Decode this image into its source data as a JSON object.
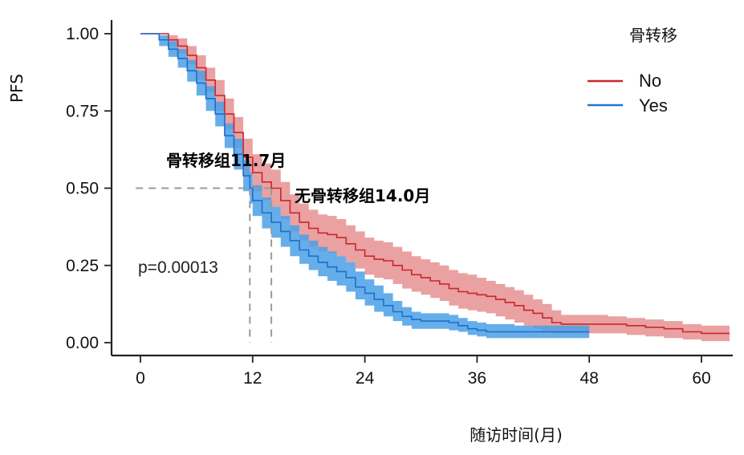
{
  "chart_data": {
    "type": "line",
    "subtype": "kaplan-meier",
    "ylabel": "PFS",
    "xlabel": "随访时间(月)",
    "xlim": [
      0,
      63
    ],
    "ylim": [
      0,
      1.0
    ],
    "x_ticks": [
      0,
      12,
      24,
      36,
      48,
      60
    ],
    "y_ticks": [
      0.0,
      0.25,
      0.5,
      0.75,
      1.0
    ],
    "y_tick_labels": [
      "0.00",
      "0.25",
      "0.50",
      "0.75",
      "1.00"
    ],
    "legend": {
      "title": "骨转移",
      "position": "top-right",
      "entries": [
        {
          "label": "No",
          "color": "#c8272d"
        },
        {
          "label": "Yes",
          "color": "#1f77d4"
        }
      ]
    },
    "annotations": {
      "median_bone_metastasis": "骨转移组11.7月",
      "median_no_bone_metastasis": "无骨转移组14.0月",
      "p_value": "p=0.00013"
    },
    "median_survival": {
      "No": 14.0,
      "Yes": 11.7
    },
    "series": [
      {
        "name": "No",
        "color": "#c8272d",
        "ci_color": "#e58a8a",
        "points": [
          [
            0,
            1.0
          ],
          [
            1.5,
            1.0
          ],
          [
            3,
            0.98
          ],
          [
            4,
            0.96
          ],
          [
            5,
            0.93
          ],
          [
            6,
            0.89
          ],
          [
            7,
            0.85
          ],
          [
            8,
            0.8
          ],
          [
            9,
            0.74
          ],
          [
            10,
            0.68
          ],
          [
            11,
            0.6
          ],
          [
            12,
            0.55
          ],
          [
            13,
            0.52
          ],
          [
            14,
            0.5
          ],
          [
            15,
            0.46
          ],
          [
            16,
            0.42
          ],
          [
            17,
            0.39
          ],
          [
            18,
            0.37
          ],
          [
            19,
            0.355
          ],
          [
            20,
            0.35
          ],
          [
            21,
            0.34
          ],
          [
            22,
            0.32
          ],
          [
            23,
            0.3
          ],
          [
            24,
            0.28
          ],
          [
            25,
            0.27
          ],
          [
            26,
            0.265
          ],
          [
            27,
            0.25
          ],
          [
            28,
            0.235
          ],
          [
            29,
            0.22
          ],
          [
            30,
            0.21
          ],
          [
            31,
            0.2
          ],
          [
            32,
            0.19
          ],
          [
            33,
            0.175
          ],
          [
            34,
            0.165
          ],
          [
            35,
            0.16
          ],
          [
            36,
            0.155
          ],
          [
            37,
            0.15
          ],
          [
            38,
            0.14
          ],
          [
            39,
            0.13
          ],
          [
            40,
            0.12
          ],
          [
            41,
            0.105
          ],
          [
            42,
            0.095
          ],
          [
            43,
            0.08
          ],
          [
            44,
            0.065
          ],
          [
            45,
            0.06
          ],
          [
            48,
            0.06
          ],
          [
            50,
            0.06
          ],
          [
            52,
            0.055
          ],
          [
            54,
            0.05
          ],
          [
            56,
            0.045
          ],
          [
            58,
            0.035
          ],
          [
            60,
            0.03
          ],
          [
            63,
            0.03
          ]
        ],
        "ci_upper": [
          [
            0,
            1.0
          ],
          [
            1.5,
            1.0
          ],
          [
            3,
            0.995
          ],
          [
            4,
            0.985
          ],
          [
            5,
            0.96
          ],
          [
            6,
            0.93
          ],
          [
            7,
            0.89
          ],
          [
            8,
            0.85
          ],
          [
            9,
            0.79
          ],
          [
            10,
            0.73
          ],
          [
            11,
            0.66
          ],
          [
            12,
            0.61
          ],
          [
            13,
            0.58
          ],
          [
            14,
            0.56
          ],
          [
            15,
            0.52
          ],
          [
            16,
            0.48
          ],
          [
            17,
            0.45
          ],
          [
            18,
            0.43
          ],
          [
            19,
            0.415
          ],
          [
            20,
            0.41
          ],
          [
            21,
            0.4
          ],
          [
            22,
            0.38
          ],
          [
            23,
            0.36
          ],
          [
            24,
            0.34
          ],
          [
            25,
            0.33
          ],
          [
            26,
            0.325
          ],
          [
            27,
            0.31
          ],
          [
            28,
            0.295
          ],
          [
            29,
            0.28
          ],
          [
            30,
            0.27
          ],
          [
            31,
            0.26
          ],
          [
            32,
            0.25
          ],
          [
            33,
            0.235
          ],
          [
            34,
            0.225
          ],
          [
            35,
            0.22
          ],
          [
            36,
            0.21
          ],
          [
            37,
            0.2
          ],
          [
            38,
            0.19
          ],
          [
            39,
            0.18
          ],
          [
            40,
            0.17
          ],
          [
            41,
            0.155
          ],
          [
            42,
            0.14
          ],
          [
            43,
            0.125
          ],
          [
            44,
            0.105
          ],
          [
            45,
            0.09
          ],
          [
            48,
            0.09
          ],
          [
            50,
            0.085
          ],
          [
            52,
            0.08
          ],
          [
            54,
            0.075
          ],
          [
            56,
            0.07
          ],
          [
            58,
            0.06
          ],
          [
            60,
            0.055
          ],
          [
            63,
            0.055
          ]
        ],
        "ci_lower": [
          [
            0,
            1.0
          ],
          [
            1.5,
            1.0
          ],
          [
            3,
            0.96
          ],
          [
            4,
            0.935
          ],
          [
            5,
            0.9
          ],
          [
            6,
            0.85
          ],
          [
            7,
            0.81
          ],
          [
            8,
            0.75
          ],
          [
            9,
            0.69
          ],
          [
            10,
            0.63
          ],
          [
            11,
            0.54
          ],
          [
            12,
            0.49
          ],
          [
            13,
            0.46
          ],
          [
            14,
            0.44
          ],
          [
            15,
            0.4
          ],
          [
            16,
            0.36
          ],
          [
            17,
            0.33
          ],
          [
            18,
            0.31
          ],
          [
            19,
            0.295
          ],
          [
            20,
            0.29
          ],
          [
            21,
            0.28
          ],
          [
            22,
            0.26
          ],
          [
            23,
            0.24
          ],
          [
            24,
            0.22
          ],
          [
            25,
            0.21
          ],
          [
            26,
            0.205
          ],
          [
            27,
            0.19
          ],
          [
            28,
            0.175
          ],
          [
            29,
            0.165
          ],
          [
            30,
            0.155
          ],
          [
            31,
            0.145
          ],
          [
            32,
            0.135
          ],
          [
            33,
            0.12
          ],
          [
            34,
            0.11
          ],
          [
            35,
            0.105
          ],
          [
            36,
            0.1
          ],
          [
            37,
            0.095
          ],
          [
            38,
            0.085
          ],
          [
            39,
            0.075
          ],
          [
            40,
            0.065
          ],
          [
            41,
            0.055
          ],
          [
            42,
            0.045
          ],
          [
            43,
            0.035
          ],
          [
            44,
            0.03
          ],
          [
            45,
            0.03
          ],
          [
            48,
            0.03
          ],
          [
            50,
            0.03
          ],
          [
            52,
            0.025
          ],
          [
            54,
            0.02
          ],
          [
            56,
            0.015
          ],
          [
            58,
            0.01
          ],
          [
            60,
            0.005
          ],
          [
            63,
            0.005
          ]
        ]
      },
      {
        "name": "Yes",
        "color": "#1f6fc9",
        "ci_color": "#4aa0e6",
        "points": [
          [
            0,
            1.0
          ],
          [
            1,
            1.0
          ],
          [
            2,
            0.98
          ],
          [
            3,
            0.95
          ],
          [
            4,
            0.92
          ],
          [
            5,
            0.88
          ],
          [
            6,
            0.84
          ],
          [
            7,
            0.79
          ],
          [
            8,
            0.74
          ],
          [
            9,
            0.67
          ],
          [
            10,
            0.61
          ],
          [
            11,
            0.54
          ],
          [
            11.7,
            0.5
          ],
          [
            12,
            0.46
          ],
          [
            13,
            0.42
          ],
          [
            14,
            0.39
          ],
          [
            15,
            0.36
          ],
          [
            16,
            0.33
          ],
          [
            17,
            0.3
          ],
          [
            18,
            0.28
          ],
          [
            19,
            0.26
          ],
          [
            20,
            0.245
          ],
          [
            21,
            0.23
          ],
          [
            22,
            0.21
          ],
          [
            23,
            0.18
          ],
          [
            24,
            0.16
          ],
          [
            25,
            0.14
          ],
          [
            26,
            0.12
          ],
          [
            27,
            0.1
          ],
          [
            28,
            0.085
          ],
          [
            29,
            0.075
          ],
          [
            30,
            0.07
          ],
          [
            32,
            0.07
          ],
          [
            33,
            0.065
          ],
          [
            34,
            0.055
          ],
          [
            35,
            0.045
          ],
          [
            36,
            0.04
          ],
          [
            37,
            0.035
          ],
          [
            40,
            0.035
          ],
          [
            42,
            0.035
          ],
          [
            44,
            0.035
          ],
          [
            46,
            0.035
          ],
          [
            48,
            0.035
          ]
        ],
        "ci_upper": [
          [
            0,
            1.0
          ],
          [
            1,
            1.0
          ],
          [
            2,
            0.995
          ],
          [
            3,
            0.975
          ],
          [
            4,
            0.95
          ],
          [
            5,
            0.915
          ],
          [
            6,
            0.88
          ],
          [
            7,
            0.83
          ],
          [
            8,
            0.78
          ],
          [
            9,
            0.71
          ],
          [
            10,
            0.66
          ],
          [
            11,
            0.59
          ],
          [
            11.7,
            0.55
          ],
          [
            12,
            0.51
          ],
          [
            13,
            0.47
          ],
          [
            14,
            0.44
          ],
          [
            15,
            0.41
          ],
          [
            16,
            0.38
          ],
          [
            17,
            0.35
          ],
          [
            18,
            0.33
          ],
          [
            19,
            0.31
          ],
          [
            20,
            0.295
          ],
          [
            21,
            0.28
          ],
          [
            22,
            0.26
          ],
          [
            23,
            0.23
          ],
          [
            24,
            0.205
          ],
          [
            25,
            0.185
          ],
          [
            26,
            0.16
          ],
          [
            27,
            0.135
          ],
          [
            28,
            0.115
          ],
          [
            29,
            0.1
          ],
          [
            30,
            0.095
          ],
          [
            32,
            0.095
          ],
          [
            33,
            0.09
          ],
          [
            34,
            0.08
          ],
          [
            35,
            0.07
          ],
          [
            36,
            0.065
          ],
          [
            37,
            0.06
          ],
          [
            40,
            0.055
          ],
          [
            42,
            0.055
          ],
          [
            44,
            0.055
          ],
          [
            46,
            0.055
          ],
          [
            48,
            0.055
          ]
        ],
        "ci_lower": [
          [
            0,
            1.0
          ],
          [
            1,
            1.0
          ],
          [
            2,
            0.96
          ],
          [
            3,
            0.925
          ],
          [
            4,
            0.89
          ],
          [
            5,
            0.845
          ],
          [
            6,
            0.8
          ],
          [
            7,
            0.75
          ],
          [
            8,
            0.7
          ],
          [
            9,
            0.63
          ],
          [
            10,
            0.56
          ],
          [
            11,
            0.49
          ],
          [
            11.7,
            0.45
          ],
          [
            12,
            0.41
          ],
          [
            13,
            0.37
          ],
          [
            14,
            0.34
          ],
          [
            15,
            0.31
          ],
          [
            16,
            0.28
          ],
          [
            17,
            0.255
          ],
          [
            18,
            0.235
          ],
          [
            19,
            0.215
          ],
          [
            20,
            0.2
          ],
          [
            21,
            0.185
          ],
          [
            22,
            0.165
          ],
          [
            23,
            0.14
          ],
          [
            24,
            0.12
          ],
          [
            25,
            0.1
          ],
          [
            26,
            0.085
          ],
          [
            27,
            0.07
          ],
          [
            28,
            0.055
          ],
          [
            29,
            0.045
          ],
          [
            30,
            0.045
          ],
          [
            32,
            0.045
          ],
          [
            33,
            0.04
          ],
          [
            34,
            0.035
          ],
          [
            35,
            0.025
          ],
          [
            36,
            0.02
          ],
          [
            37,
            0.015
          ],
          [
            40,
            0.015
          ],
          [
            42,
            0.015
          ],
          [
            44,
            0.015
          ],
          [
            46,
            0.015
          ],
          [
            48,
            0.015
          ]
        ]
      }
    ]
  }
}
